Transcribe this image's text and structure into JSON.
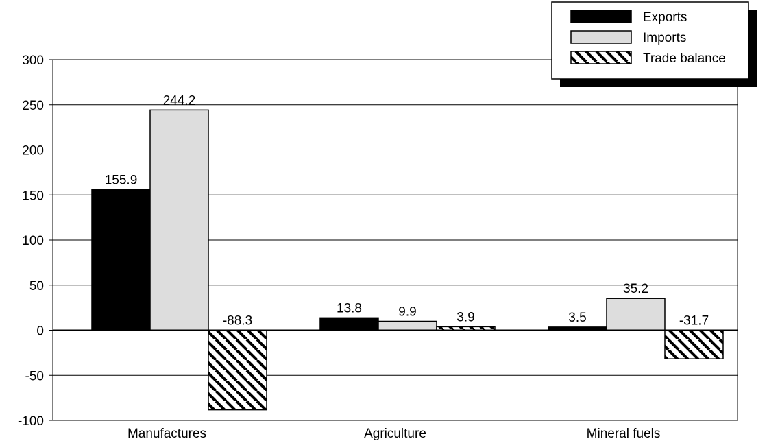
{
  "chart_data": {
    "type": "bar",
    "title": "",
    "xlabel": "",
    "ylabel": "",
    "categories": [
      "Manufactures",
      "Agriculture",
      "Mineral fuels"
    ],
    "series": [
      {
        "name": "Exports",
        "values": [
          155.9,
          13.8,
          3.5
        ],
        "labels": [
          "155.9",
          "13.8",
          "3.5"
        ],
        "color": "#000000",
        "pattern": "solid"
      },
      {
        "name": "Imports",
        "values": [
          244.2,
          9.9,
          35.2
        ],
        "labels": [
          "244.2",
          "9.9",
          "35.2"
        ],
        "color": "#dddddd",
        "pattern": "solid"
      },
      {
        "name": "Trade balance",
        "values": [
          -88.3,
          3.9,
          -31.7
        ],
        "labels": [
          "-88.3",
          "3.9",
          "-31.7"
        ],
        "color": "#ffffff",
        "pattern": "diagonal-hatch"
      }
    ],
    "ylim": [
      -100,
      300
    ],
    "yticks": [
      -100,
      -50,
      0,
      50,
      100,
      150,
      200,
      250,
      300
    ],
    "ytick_labels": [
      "-100",
      "-50",
      "0",
      "50",
      "100",
      "150",
      "200",
      "250",
      "300"
    ],
    "grid": true,
    "legend": {
      "position": "top-right",
      "entries": [
        "Exports",
        "Imports",
        "Trade balance"
      ]
    }
  }
}
